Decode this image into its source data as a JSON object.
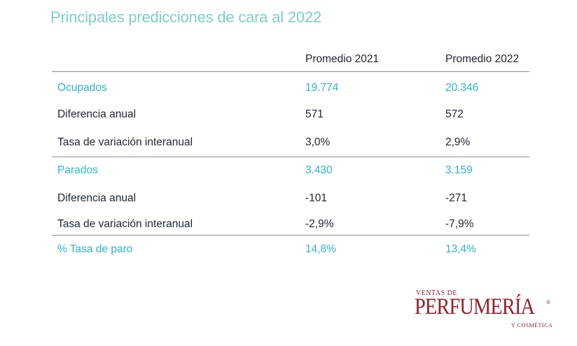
{
  "title": "Principales predicciones de cara al 2022",
  "columns": {
    "label": "",
    "col1": "Promedio 2021",
    "col2": "Promedio 2022"
  },
  "rows": [
    {
      "label": "Ocupados",
      "v2021": "19.774",
      "v2022": "20.346",
      "style": "accent"
    },
    {
      "label": "Diferencia anual",
      "v2021": "571",
      "v2022": "572",
      "style": "plain"
    },
    {
      "label": "Tasa de variación interanual",
      "v2021": "3,0%",
      "v2022": "2,9%",
      "style": "plain"
    },
    {
      "label": "Parados",
      "v2021": "3.430",
      "v2022": "3.159",
      "style": "accent"
    },
    {
      "label": "Diferencia anual",
      "v2021": "-101",
      "v2022": "-271",
      "style": "plain"
    },
    {
      "label": "Tasa de variación interanual",
      "v2021": "-2,9%",
      "v2022": "-7,9%",
      "style": "plain"
    },
    {
      "label": "% Tasa de paro",
      "v2021": "14,8%",
      "v2022": "13,4%",
      "style": "accent"
    }
  ],
  "brand": {
    "top": "VENTAS DE",
    "main": "PERFUMERÍA",
    "registered": "®",
    "bottom": "Y COSMÉTICA"
  },
  "colors": {
    "title": "#7dcfc6",
    "accent": "#2ab8c8",
    "text": "#1f2433",
    "brand": "#9b1d2a"
  }
}
